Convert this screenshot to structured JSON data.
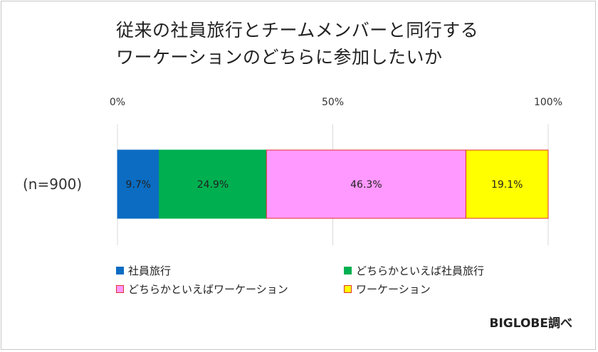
{
  "chart_data": {
    "type": "bar",
    "orientation": "horizontal",
    "stacked": "percent",
    "title_lines": [
      "従来の社員旅行とチームメンバーと同行する",
      "ワーケーションのどちらに参加したいか"
    ],
    "categories": [
      "(n=900)"
    ],
    "x_ticks": [
      "0%",
      "50%",
      "100%"
    ],
    "xlim": [
      0,
      100
    ],
    "grid": true,
    "legend_position": "bottom",
    "series": [
      {
        "name": "社員旅行",
        "values": [
          9.7
        ],
        "label": "9.7%",
        "color": "#0b6cc2",
        "border": "#0b6cc2"
      },
      {
        "name": "どちらかといえば社員旅行",
        "values": [
          24.9
        ],
        "label": "24.9%",
        "color": "#00b050",
        "border": "#00b050"
      },
      {
        "name": "どちらかといえばワーケーション",
        "values": [
          46.3
        ],
        "label": "46.3%",
        "color": "#ff99ff",
        "border": "#e03030"
      },
      {
        "name": "ワーケーション",
        "values": [
          19.1
        ],
        "label": "19.1%",
        "color": "#ffff00",
        "border": "#e03030"
      }
    ]
  },
  "source_credit": "BIGLOBE調べ"
}
